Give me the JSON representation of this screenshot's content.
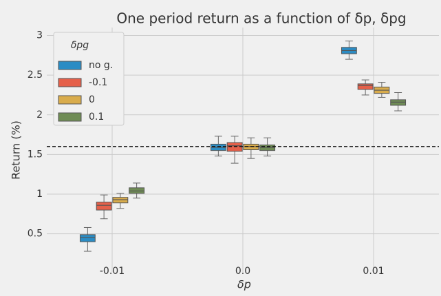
{
  "chart_data": {
    "type": "box",
    "title": "One period return as a function of δp, δpg",
    "x_label": "δp",
    "y_label": "Return (%)",
    "categories": [
      "-0.01",
      "0.0",
      "0.01"
    ],
    "legend_title": "δpg",
    "legend": "upper left",
    "grid": true,
    "reference_line": 1.6,
    "ylim": [
      0.02,
      3.1
    ],
    "yticks": [
      0.5,
      1.0,
      1.5,
      2.0,
      2.5,
      3.0
    ],
    "series": [
      {
        "name": "no g.",
        "color": "#2b8cc4",
        "values": [
          [
            0.28,
            0.4,
            0.45,
            0.49,
            0.58
          ],
          [
            1.48,
            1.55,
            1.59,
            1.63,
            1.73
          ],
          [
            2.7,
            2.77,
            2.81,
            2.85,
            2.93
          ]
        ]
      },
      {
        "name": "-0.1",
        "color": "#e5604a",
        "values": [
          [
            0.69,
            0.8,
            0.86,
            0.9,
            0.99
          ],
          [
            1.39,
            1.54,
            1.61,
            1.65,
            1.73
          ],
          [
            2.25,
            2.32,
            2.37,
            2.39,
            2.44
          ]
        ]
      },
      {
        "name": "0",
        "color": "#d9ac4c",
        "values": [
          [
            0.82,
            0.89,
            0.93,
            0.96,
            1.01
          ],
          [
            1.45,
            1.56,
            1.6,
            1.63,
            1.71
          ],
          [
            2.22,
            2.27,
            2.31,
            2.35,
            2.41
          ]
        ]
      },
      {
        "name": "0.1",
        "color": "#6f8c55",
        "values": [
          [
            0.95,
            1.01,
            1.04,
            1.08,
            1.14
          ],
          [
            1.48,
            1.55,
            1.59,
            1.62,
            1.71
          ],
          [
            2.05,
            2.12,
            2.16,
            2.19,
            2.28
          ]
        ]
      }
    ]
  }
}
